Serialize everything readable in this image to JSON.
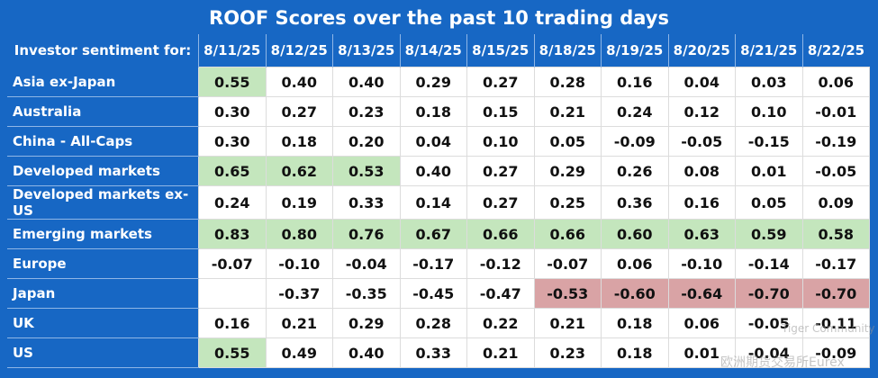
{
  "title": "ROOF Scores over the past 10 trading days",
  "table": {
    "header_label": "Investor sentiment for:",
    "columns": [
      "8/11/25",
      "8/12/25",
      "8/13/25",
      "8/14/25",
      "8/15/25",
      "8/18/25",
      "8/19/25",
      "8/20/25",
      "8/21/25",
      "8/22/25"
    ],
    "rows": [
      {
        "label": "Asia ex-Japan",
        "values": [
          "0.55",
          "0.40",
          "0.40",
          "0.29",
          "0.27",
          "0.28",
          "0.16",
          "0.04",
          "0.03",
          "0.06"
        ]
      },
      {
        "label": "Australia",
        "values": [
          "0.30",
          "0.27",
          "0.23",
          "0.18",
          "0.15",
          "0.21",
          "0.24",
          "0.12",
          "0.10",
          "-0.01"
        ]
      },
      {
        "label": "China - All-Caps",
        "values": [
          "0.30",
          "0.18",
          "0.20",
          "0.04",
          "0.10",
          "0.05",
          "-0.09",
          "-0.05",
          "-0.15",
          "-0.19"
        ]
      },
      {
        "label": "Developed markets",
        "values": [
          "0.65",
          "0.62",
          "0.53",
          "0.40",
          "0.27",
          "0.29",
          "0.26",
          "0.08",
          "0.01",
          "-0.05"
        ]
      },
      {
        "label": "Developed markets ex-US",
        "values": [
          "0.24",
          "0.19",
          "0.33",
          "0.14",
          "0.27",
          "0.25",
          "0.36",
          "0.16",
          "0.05",
          "0.09"
        ]
      },
      {
        "label": "Emerging markets",
        "values": [
          "0.83",
          "0.80",
          "0.76",
          "0.67",
          "0.66",
          "0.66",
          "0.60",
          "0.63",
          "0.59",
          "0.58"
        ]
      },
      {
        "label": "Europe",
        "values": [
          "-0.07",
          "-0.10",
          "-0.04",
          "-0.17",
          "-0.12",
          "-0.07",
          "0.06",
          "-0.10",
          "-0.14",
          "-0.17"
        ]
      },
      {
        "label": "Japan",
        "values": [
          null,
          "-0.37",
          "-0.35",
          "-0.45",
          "-0.47",
          "-0.53",
          "-0.60",
          "-0.64",
          "-0.70",
          "-0.70"
        ]
      },
      {
        "label": "UK",
        "values": [
          "0.16",
          "0.21",
          "0.29",
          "0.28",
          "0.22",
          "0.21",
          "0.18",
          "0.06",
          "-0.05",
          "-0.11"
        ]
      },
      {
        "label": "US",
        "values": [
          "0.55",
          "0.49",
          "0.40",
          "0.33",
          "0.21",
          "0.23",
          "0.18",
          "0.01",
          "-0.04",
          "-0.09"
        ]
      }
    ],
    "colors": {
      "high": "#c4e6bd",
      "low": "#d9a3a5"
    }
  },
  "watermark": [
    "Tiger Community",
    "欧洲期货交易所Eurex"
  ]
}
